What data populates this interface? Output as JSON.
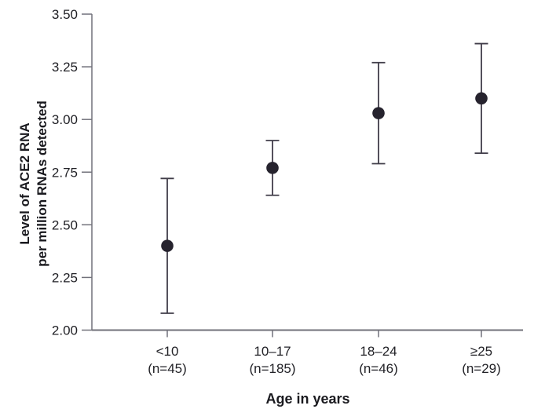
{
  "colors": {
    "background": "#ffffff",
    "axis": "#71717a",
    "error_bar": "#403d49",
    "point": "#26232e",
    "tick_text": "#222227",
    "label_text": "#1a1a1f"
  },
  "chart_data": {
    "type": "scatter",
    "title": "",
    "xlabel": "Age in years",
    "ylabel_lines": [
      "Level of ACE2 RNA",
      "per million RNAs detected"
    ],
    "categories": [
      "<10",
      "10–17",
      "18–24",
      "≥25"
    ],
    "category_counts": [
      "(n=45)",
      "(n=185)",
      "(n=46)",
      "(n=29)"
    ],
    "points": [
      {
        "category": "<10",
        "n": 45,
        "mean": 2.4,
        "ci_low": 2.08,
        "ci_high": 2.72
      },
      {
        "category": "10–17",
        "n": 185,
        "mean": 2.77,
        "ci_low": 2.64,
        "ci_high": 2.9
      },
      {
        "category": "18–24",
        "n": 46,
        "mean": 3.03,
        "ci_low": 2.79,
        "ci_high": 3.27
      },
      {
        "category": "≥25",
        "n": 29,
        "mean": 3.1,
        "ci_low": 2.84,
        "ci_high": 3.36
      }
    ],
    "ylim": [
      2.0,
      3.5
    ],
    "ytick_labels": [
      "2.00",
      "2.25",
      "2.50",
      "2.75",
      "3.00",
      "3.25",
      "3.50"
    ],
    "grid": false,
    "legend": null
  }
}
